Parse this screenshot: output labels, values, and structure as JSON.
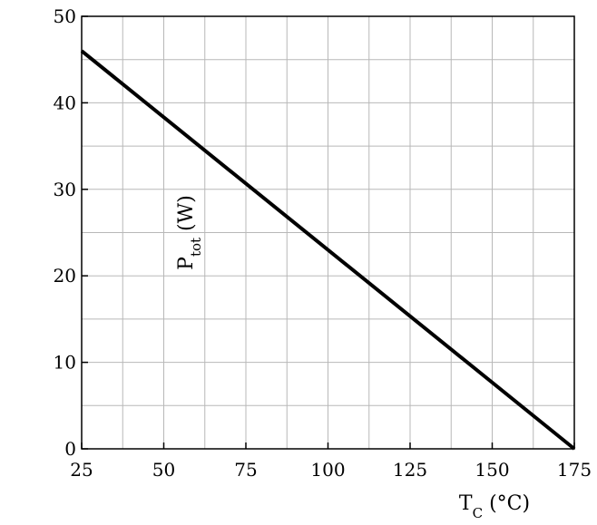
{
  "chart_data": {
    "type": "line",
    "title": "",
    "xlabel": "T",
    "xlabel_sub": "C",
    "xlabel_unit": " (°C)",
    "ylabel": "P",
    "ylabel_sub": "tot",
    "ylabel_unit": " (W)",
    "xlim": [
      25,
      175
    ],
    "ylim": [
      0,
      50
    ],
    "x_ticks": [
      25,
      50,
      75,
      100,
      125,
      150,
      175
    ],
    "x_tick_labels": [
      "25",
      "50",
      "75",
      "100",
      "125",
      "150",
      "175"
    ],
    "y_ticks": [
      0,
      10,
      20,
      30,
      40,
      50
    ],
    "y_tick_labels": [
      "0",
      "10",
      "20",
      "30",
      "40",
      "50"
    ],
    "grid": true,
    "series": [
      {
        "color": "#000000",
        "x": [
          25,
          175
        ],
        "y": [
          46,
          0
        ]
      }
    ]
  }
}
